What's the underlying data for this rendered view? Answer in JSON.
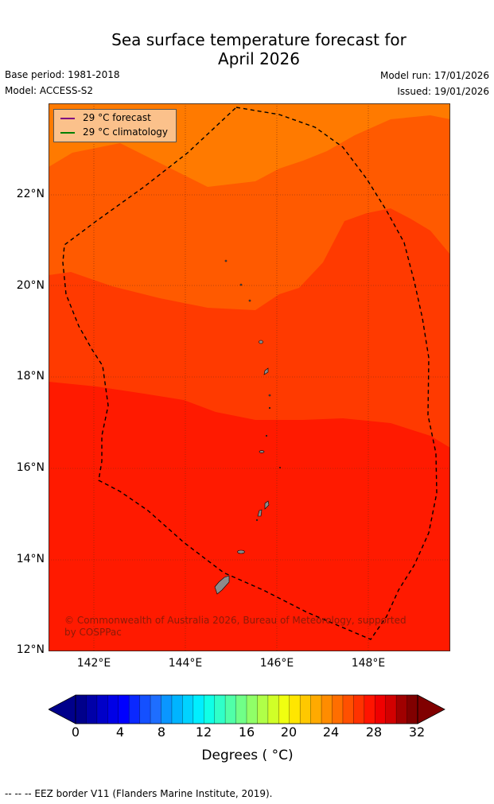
{
  "title": {
    "line1": "Sea surface temperature forecast for",
    "line2": "April 2026"
  },
  "meta": {
    "base_period": "Base period: 1981-2018",
    "model": "Model: ACCESS-S2",
    "model_run": "Model run: 17/01/2026",
    "issued": "Issued: 19/01/2026"
  },
  "map": {
    "lat_labels": [
      "22°N",
      "20°N",
      "18°N",
      "16°N",
      "14°N",
      "12°N"
    ],
    "lon_labels": [
      "142°E",
      "144°E",
      "146°E",
      "148°E"
    ],
    "copyright_line1": "© Commonwealth of Australia 2026, Bureau of Meteorology, supported",
    "copyright_line2": "by COSPPac",
    "colors": {
      "c_25_26": "#ff7a00",
      "c_26_27": "#ff5a00",
      "c_27_28": "#ff3a00",
      "c_28_29": "#ff1a00",
      "land": "#8c8c8c",
      "eez": "#000000"
    }
  },
  "legend": {
    "forecast_label": "29 °C  forecast",
    "climatology_label": "29 °C  climatology",
    "forecast_color": "#800080",
    "climatology_color": "#008000"
  },
  "colorbar": {
    "ticks": [
      "0",
      "4",
      "8",
      "12",
      "16",
      "20",
      "24",
      "28",
      "32"
    ],
    "label": "Degrees ( °C)",
    "colors": [
      "#00008b",
      "#0000a8",
      "#0000c8",
      "#0000e6",
      "#0000ff",
      "#0a28ff",
      "#1450ff",
      "#1e6eff",
      "#0a96ff",
      "#00b4ff",
      "#00d2ff",
      "#00eeff",
      "#10ffe6",
      "#30ffc8",
      "#50ffa8",
      "#70ff88",
      "#90ff68",
      "#b0ff48",
      "#d0ff28",
      "#f0ff10",
      "#ffe600",
      "#ffc800",
      "#ffaa00",
      "#ff8c00",
      "#ff6e00",
      "#ff5000",
      "#ff3200",
      "#ff1400",
      "#f00000",
      "#d20000",
      "#a00000",
      "#800000"
    ],
    "min_color": "#00008b",
    "max_color": "#800000"
  },
  "footnote": "--  --  -- EEZ border V11 (Flanders Marine Institute, 2019)."
}
